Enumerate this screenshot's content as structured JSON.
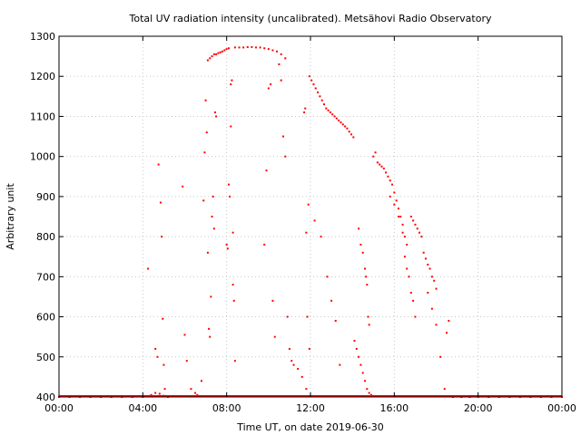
{
  "chart_data": {
    "type": "scatter",
    "title": "Total UV radiation intensity (uncalibrated). Metsähovi Radio Observatory",
    "xlabel": "Time UT, on date 2019-06-30",
    "ylabel": "Arbitrary unit",
    "xlim": [
      0,
      24
    ],
    "ylim": [
      400,
      1300
    ],
    "x_ticks": [
      0,
      4,
      8,
      12,
      16,
      20,
      24
    ],
    "x_tick_labels": [
      "00:00",
      "04:00",
      "08:00",
      "12:00",
      "16:00",
      "20:00",
      "00:00"
    ],
    "y_ticks": [
      400,
      500,
      600,
      700,
      800,
      900,
      1000,
      1100,
      1200,
      1300
    ],
    "y_tick_labels": [
      "400",
      "500",
      "600",
      "700",
      "800",
      "900",
      "1000",
      "1100",
      "1200",
      "1300"
    ],
    "grid": true,
    "colors": {
      "points": "#ff0000",
      "axes": "#000000",
      "grid": "#c8c8c8"
    },
    "series": [
      {
        "values_note_hidden": "",
        "x": [
          0.0,
          0.5,
          1.0,
          1.5,
          2.0,
          2.5,
          3.0,
          3.5,
          4.0,
          4.2,
          4.4,
          4.6,
          4.8,
          5.0,
          5.2,
          4.25,
          4.6,
          4.7,
          4.75,
          4.85,
          4.9,
          4.95,
          5.0,
          5.05,
          5.9,
          6.0,
          6.1,
          6.3,
          6.5,
          6.6,
          6.8,
          6.9,
          6.95,
          7.0,
          7.05,
          7.1,
          7.15,
          7.2,
          7.25,
          7.3,
          7.35,
          7.4,
          7.45,
          7.5,
          7.1,
          7.2,
          7.3,
          7.4,
          7.5,
          7.6,
          7.7,
          7.8,
          7.9,
          8.0,
          8.1,
          8.2,
          8.3,
          8.0,
          8.05,
          8.1,
          8.15,
          8.2,
          8.25,
          8.3,
          8.35,
          8.4,
          8.4,
          8.6,
          8.8,
          9.0,
          9.2,
          9.4,
          9.6,
          9.8,
          10.0,
          10.2,
          10.4,
          10.6,
          10.8,
          9.8,
          9.9,
          10.0,
          10.1,
          10.2,
          10.3,
          10.5,
          10.6,
          10.7,
          10.8,
          10.9,
          11.0,
          11.1,
          11.2,
          11.4,
          11.6,
          11.8,
          11.7,
          11.75,
          11.8,
          11.85,
          11.9,
          11.95,
          11.95,
          12.05,
          12.15,
          12.25,
          12.35,
          12.45,
          12.55,
          12.65,
          12.75,
          12.85,
          12.95,
          13.05,
          13.15,
          13.25,
          13.35,
          13.45,
          13.55,
          13.65,
          13.75,
          13.85,
          13.95,
          14.05,
          12.2,
          12.5,
          12.8,
          13.0,
          13.2,
          13.4,
          14.1,
          14.2,
          14.3,
          14.4,
          14.5,
          14.6,
          14.7,
          14.8,
          14.9,
          15.0,
          15.1,
          14.3,
          14.4,
          14.5,
          14.6,
          14.65,
          14.7,
          14.75,
          14.8,
          15.2,
          15.3,
          15.4,
          15.5,
          15.6,
          15.7,
          15.8,
          15.9,
          16.0,
          16.1,
          16.2,
          16.3,
          16.4,
          16.5,
          16.6,
          15.8,
          16.0,
          16.2,
          16.4,
          16.5,
          16.6,
          16.7,
          16.8,
          16.9,
          17.0,
          16.8,
          16.9,
          17.0,
          17.1,
          17.2,
          17.3,
          17.4,
          17.5,
          17.6,
          17.7,
          17.8,
          17.9,
          18.0,
          17.6,
          17.8,
          18.0,
          18.2,
          18.4,
          18.5,
          18.6,
          18.8,
          19.2,
          19.6,
          20.0,
          20.5,
          21.0,
          21.5,
          22.0,
          22.5,
          23.0,
          23.5,
          24.0
        ],
        "y": [
          400,
          400,
          400,
          400,
          400,
          400,
          400,
          400,
          400,
          402,
          405,
          410,
          408,
          403,
          400,
          720,
          520,
          500,
          980,
          885,
          800,
          595,
          480,
          420,
          925,
          555,
          490,
          420,
          410,
          405,
          440,
          890,
          1010,
          1140,
          1060,
          760,
          570,
          550,
          650,
          850,
          900,
          820,
          1110,
          1100,
          1240,
          1245,
          1250,
          1255,
          1255,
          1258,
          1260,
          1262,
          1265,
          1268,
          1270,
          1075,
          810,
          780,
          770,
          930,
          900,
          1180,
          1190,
          680,
          640,
          490,
          1272,
          1272,
          1272,
          1273,
          1273,
          1272,
          1272,
          1270,
          1268,
          1265,
          1262,
          1255,
          1245,
          780,
          965,
          1170,
          1180,
          640,
          550,
          1230,
          1190,
          1050,
          1000,
          600,
          520,
          490,
          480,
          470,
          450,
          420,
          1110,
          1120,
          810,
          600,
          880,
          520,
          1200,
          1190,
          1180,
          1170,
          1160,
          1150,
          1140,
          1130,
          1120,
          1115,
          1110,
          1105,
          1100,
          1095,
          1090,
          1085,
          1080,
          1075,
          1070,
          1062,
          1055,
          1048,
          840,
          800,
          700,
          640,
          590,
          480,
          540,
          520,
          500,
          480,
          460,
          440,
          420,
          410,
          405,
          1000,
          1010,
          820,
          780,
          760,
          720,
          700,
          680,
          600,
          580,
          985,
          980,
          975,
          970,
          960,
          950,
          940,
          930,
          910,
          890,
          870,
          850,
          830,
          800,
          780,
          900,
          880,
          850,
          810,
          750,
          720,
          700,
          660,
          640,
          600,
          850,
          840,
          830,
          820,
          810,
          800,
          760,
          745,
          730,
          720,
          700,
          690,
          670,
          660,
          620,
          580,
          500,
          420,
          560,
          590,
          400,
          400,
          400,
          400,
          400,
          400,
          400,
          400,
          400,
          400,
          400,
          400
        ]
      }
    ]
  }
}
